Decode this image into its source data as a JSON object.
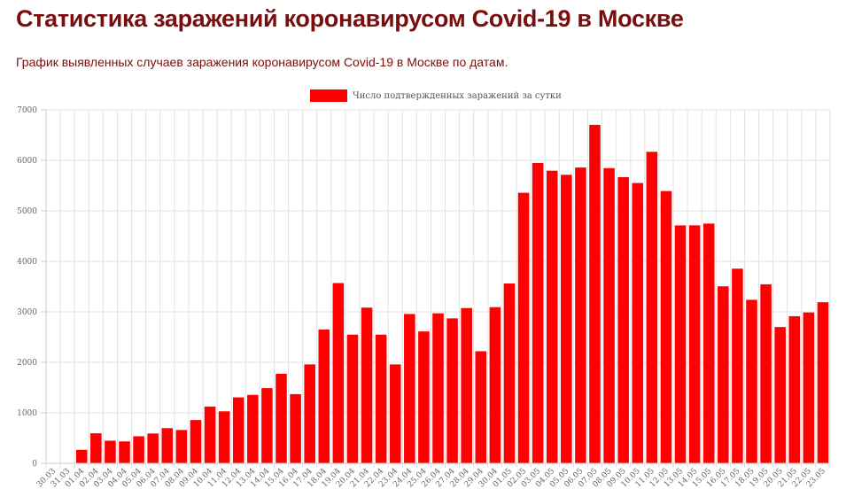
{
  "page": {
    "title": "Статистика заражений коронавирусом Covid-19 в Москве",
    "subtitle": "График выявленных случаев заражения коронавирусом Covid-19 в Москве по датам."
  },
  "colors": {
    "bar": "#ff0000",
    "title": "#7a0d0d",
    "grid": "#e2e2e2"
  },
  "chart_data": {
    "type": "bar",
    "legend": "Число подтвержденных заражений за сутки",
    "legend_position": "top-center",
    "grid": true,
    "ylim": [
      0,
      7000
    ],
    "yticks": [
      0,
      1000,
      2000,
      3000,
      4000,
      5000,
      6000,
      7000
    ],
    "categories": [
      "30.03",
      "31.03",
      "01.04",
      "02.04",
      "03.04",
      "04.04",
      "05.04",
      "06.04",
      "07.04",
      "08.04",
      "09.04",
      "10.04",
      "11.04",
      "12.04",
      "13.04",
      "14.04",
      "15.04",
      "16.04",
      "17.04",
      "18.04",
      "19.04",
      "20.04",
      "21.04",
      "22.04",
      "23.04",
      "24.04",
      "25.04",
      "26.04",
      "27.04",
      "28.04",
      "29.04",
      "30.04",
      "01.05",
      "02.05",
      "03.05",
      "04.05",
      "05.05",
      "06.05",
      "07.05",
      "08.05",
      "09.05",
      "10.05",
      "11.05",
      "12.05",
      "13.05",
      "14.05",
      "15.05",
      "16.05",
      "17.05",
      "18.05",
      "19.05",
      "20.05",
      "21.05",
      "22.05",
      "23.05"
    ],
    "values": [
      0,
      0,
      267,
      595,
      448,
      434,
      536,
      591,
      697,
      660,
      857,
      1124,
      1030,
      1306,
      1355,
      1489,
      1774,
      1370,
      1959,
      2649,
      3570,
      2548,
      3083,
      2548,
      1959,
      2957,
      2612,
      2971,
      2871,
      3075,
      2220,
      3093,
      3561,
      5358,
      5948,
      5795,
      5714,
      5858,
      6703,
      5846,
      5667,
      5551,
      6169,
      5392,
      4712,
      4713,
      4748,
      3505,
      3855,
      3238,
      3545,
      2699,
      2913,
      2988,
      3190
    ]
  }
}
